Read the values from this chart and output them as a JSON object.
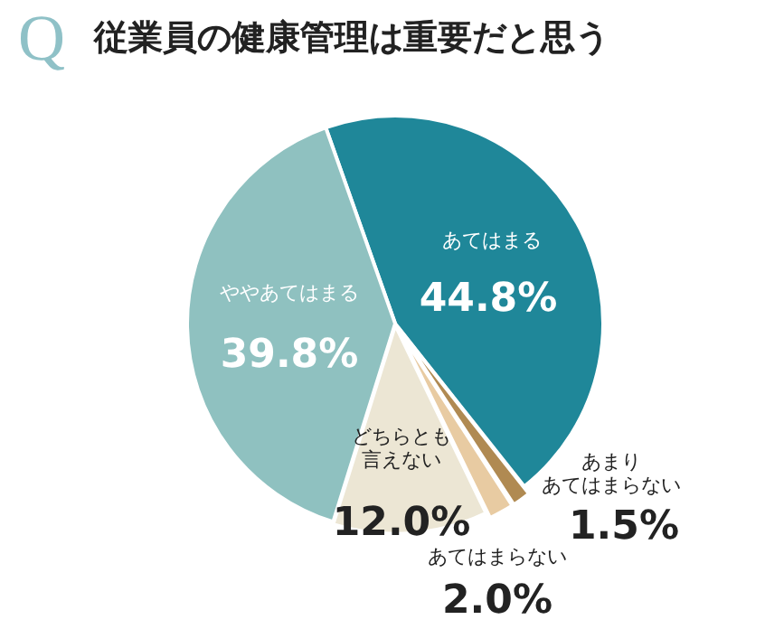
{
  "chart_data": {
    "type": "pie",
    "title": "従業員の健康管理は重要だと思う",
    "annotations": [
      "Q"
    ],
    "categories": [
      "あてはまる",
      "あまりあてはまらない",
      "あてはまらない",
      "どちらとも言えない",
      "ややあてはまる"
    ],
    "values": [
      44.8,
      1.5,
      2.0,
      12.0,
      39.8
    ],
    "colors": [
      "#1f8799",
      "#b08a52",
      "#e8cba2",
      "#ece6d4",
      "#8fc1c0"
    ],
    "value_labels": [
      "44.8%",
      "1.5%",
      "2.0%",
      "12.0%",
      "39.8%"
    ],
    "legend": false
  }
}
